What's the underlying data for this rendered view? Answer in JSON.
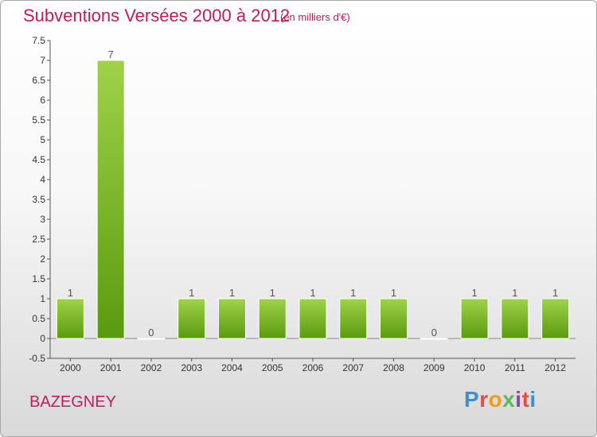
{
  "header": {
    "title": "Subventions Versées 2000 à 2012",
    "subtitle": "(en milliers d'€)"
  },
  "footer": {
    "commune": "BAZEGNEY",
    "logo_text": "Proxiti",
    "logo_colors": [
      "#3b8fd6",
      "#e74c3c",
      "#f39c12",
      "#5cb85c",
      "#8e44ad",
      "#e74c3c",
      "#3b8fd6"
    ]
  },
  "colors": {
    "title": "#c8195a",
    "bar_top": "#9fd24a",
    "bar_bottom": "#5a9a10"
  },
  "chart_data": {
    "type": "bar",
    "title": "Subventions Versées 2000 à 2012",
    "subtitle": "(en milliers d'€)",
    "categories": [
      "2000",
      "2001",
      "2002",
      "2003",
      "2004",
      "2005",
      "2006",
      "2007",
      "2008",
      "2009",
      "2010",
      "2011",
      "2012"
    ],
    "values": [
      1,
      7,
      0,
      1,
      1,
      1,
      1,
      1,
      1,
      0,
      1,
      1,
      1
    ],
    "data_labels": [
      "1",
      "7",
      "0",
      "1",
      "1",
      "1",
      "1",
      "1",
      "1",
      "0",
      "1",
      "1",
      "1"
    ],
    "ylim": [
      -0.5,
      7.5
    ],
    "yticks": [
      -0.5,
      0,
      0.5,
      1,
      1.5,
      2,
      2.5,
      3,
      3.5,
      4,
      4.5,
      5,
      5.5,
      6,
      6.5,
      7,
      7.5
    ],
    "ytick_labels": [
      "-0.5",
      "0",
      "0.5",
      "1",
      "1.5",
      "2",
      "2.5",
      "3",
      "3.5",
      "4",
      "4.5",
      "5",
      "5.5",
      "6",
      "6.5",
      "7",
      "7.5"
    ],
    "grid": false
  }
}
